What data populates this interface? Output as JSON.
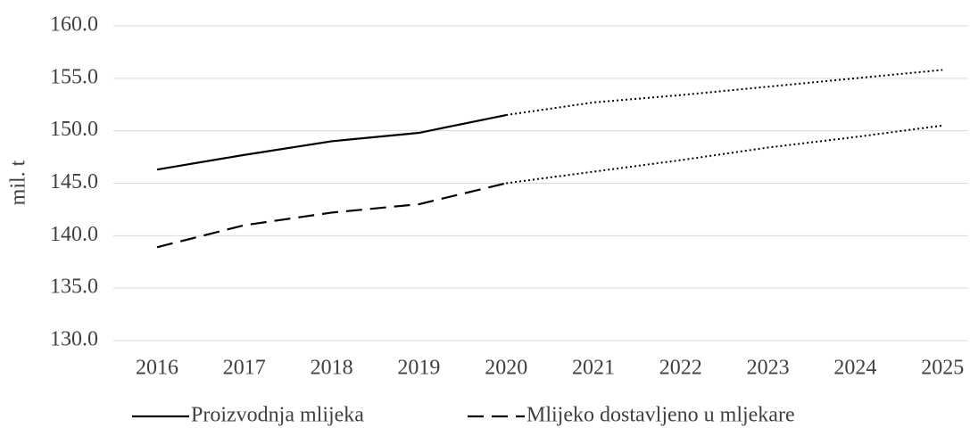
{
  "chart_data": {
    "type": "line",
    "y_label": "mil. t",
    "categories": [
      "2016",
      "2017",
      "2018",
      "2019",
      "2020",
      "2021",
      "2022",
      "2023",
      "2024",
      "2025"
    ],
    "projection_start": "2020",
    "series": [
      {
        "name": "Proizvodnja mlijeka",
        "color": "#000000",
        "line_style": "solid",
        "values": [
          146.3,
          147.7,
          149.0,
          149.8,
          151.5,
          152.7,
          153.4,
          154.2,
          155.0,
          155.8
        ]
      },
      {
        "name": "Mlijeko dostavljeno u mljekare",
        "color": "#000000",
        "line_style": "dashed",
        "values": [
          138.9,
          141.0,
          142.2,
          143.0,
          145.0,
          146.1,
          147.2,
          148.4,
          149.4,
          150.5
        ]
      }
    ],
    "ylim": [
      130,
      160
    ],
    "yticks": [
      {
        "value": 130,
        "label": "130.0"
      },
      {
        "value": 135,
        "label": "135.0"
      },
      {
        "value": 140,
        "label": "140.0"
      },
      {
        "value": 145,
        "label": "145.0"
      },
      {
        "value": 150,
        "label": "150.0"
      },
      {
        "value": 155,
        "label": "155.0"
      },
      {
        "value": 160,
        "label": "160.0"
      }
    ],
    "grid": true,
    "legend": "bottom"
  }
}
